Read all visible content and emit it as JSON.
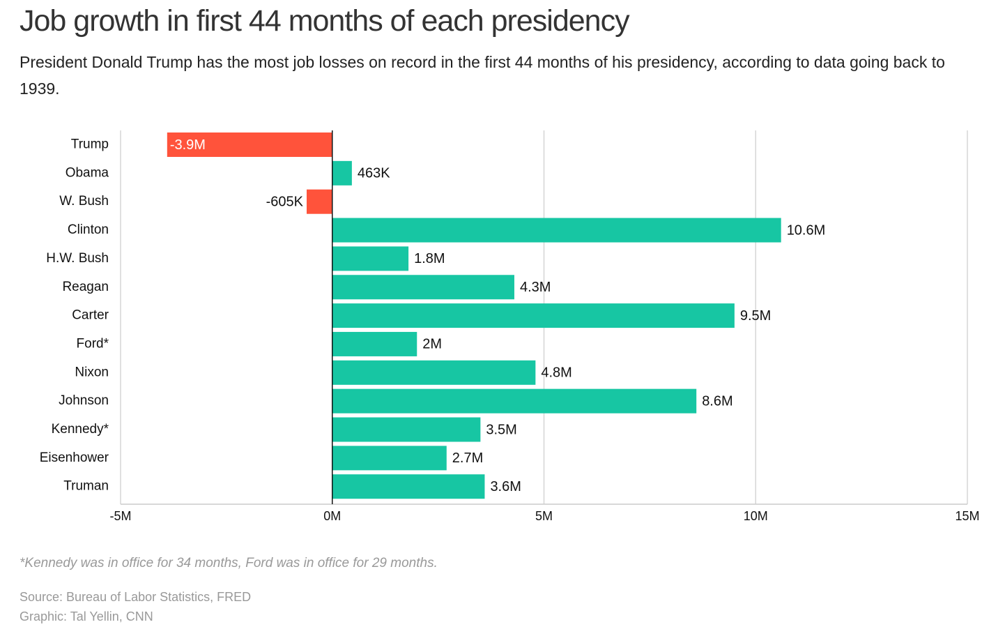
{
  "chart_data": {
    "type": "hbar",
    "title": "Job growth in first 44 months of each presidency",
    "subtitle": "President Donald Trump has the most job losses on record in the first 44 months of his presidency, according to data going back to 1939.",
    "categories": [
      "Trump",
      "Obama",
      "W. Bush",
      "Clinton",
      "H.W. Bush",
      "Reagan",
      "Carter",
      "Ford*",
      "Nixon",
      "Johnson",
      "Kennedy*",
      "Eisenhower",
      "Truman"
    ],
    "values": [
      -3.9,
      0.463,
      -0.605,
      10.6,
      1.8,
      4.3,
      9.5,
      2,
      4.8,
      8.6,
      3.5,
      2.7,
      3.6
    ],
    "value_labels": [
      "-3.9M",
      "463K",
      "-605K",
      "10.6M",
      "1.8M",
      "4.3M",
      "9.5M",
      "2M",
      "4.8M",
      "8.6M",
      "3.5M",
      "2.7M",
      "3.6M"
    ],
    "color": "#17c6a3",
    "negative_color": "#ff533b",
    "xlim": [
      -5,
      15
    ],
    "xticks": [
      {
        "value": -5,
        "label": "-5M"
      },
      {
        "value": 0,
        "label": "0M"
      },
      {
        "value": 5,
        "label": "5M"
      },
      {
        "value": 10,
        "label": "10M"
      },
      {
        "value": 15,
        "label": "15M"
      }
    ],
    "grid": true,
    "note": "*Kennedy was in office for 34 months, Ford was in office for 29 months.",
    "source": "Source: Bureau of Labor Statistics, FRED",
    "credit": "Graphic: Tal Yellin, CNN"
  }
}
